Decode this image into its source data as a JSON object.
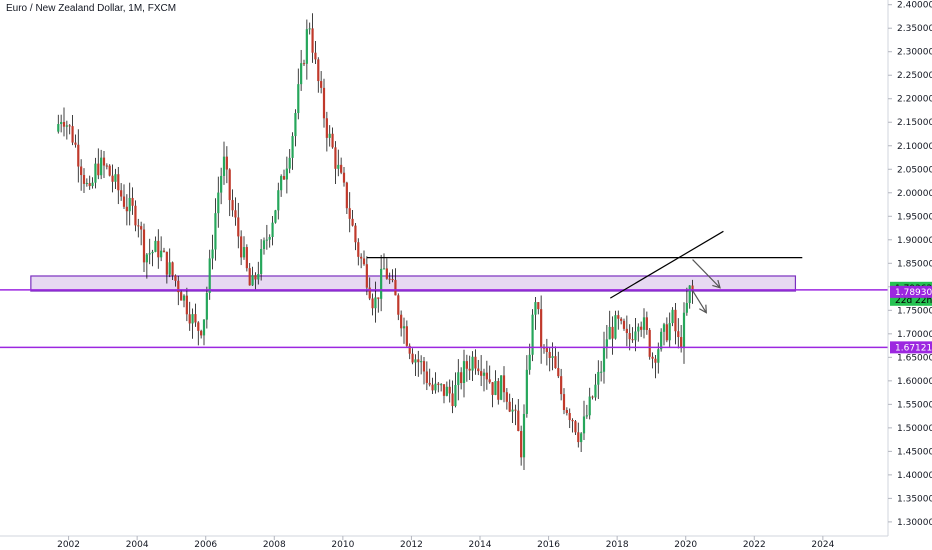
{
  "header": {
    "title": "Euro / New Zealand Dollar, 1M, FXCM"
  },
  "colors": {
    "up": "#26a65b",
    "down": "#c0392b",
    "zone_fill": "#e7d9f2",
    "zone_border": "#7b2fbf",
    "level_line": "#9c27e0",
    "price_badge": "#26c252",
    "axis_text": "#131722"
  },
  "chart_data": {
    "type": "candlestick",
    "title": "Euro / New Zealand Dollar, 1M, FXCM",
    "symbol": "EURNZD",
    "timeframe": "1M",
    "ylim": [
      1.27,
      2.41
    ],
    "xlim": [
      2000.0,
      2025.9
    ],
    "y_ticks": [
      "2.40000",
      "2.35000",
      "2.30000",
      "2.25000",
      "2.20000",
      "2.15000",
      "2.10000",
      "2.05000",
      "2.00000",
      "1.95000",
      "1.90000",
      "1.85000",
      "1.80000",
      "1.75000",
      "1.70000",
      "1.65000",
      "1.60000",
      "1.55000",
      "1.50000",
      "1.45000",
      "1.40000",
      "1.35000",
      "1.30000"
    ],
    "x_ticks": [
      "2002",
      "2004",
      "2006",
      "2008",
      "2010",
      "2012",
      "2014",
      "2016",
      "2018",
      "2020",
      "2022",
      "2024"
    ],
    "price_path": [
      [
        2001.7,
        2.13
      ],
      [
        2001.9,
        2.17
      ],
      [
        2002.2,
        2.12
      ],
      [
        2002.4,
        2.07
      ],
      [
        2002.7,
        1.99
      ],
      [
        2002.9,
        2.06
      ],
      [
        2003.2,
        2.05
      ],
      [
        2003.5,
        2.01
      ],
      [
        2003.8,
        1.97
      ],
      [
        2004.1,
        1.95
      ],
      [
        2004.3,
        1.87
      ],
      [
        2004.7,
        1.88
      ],
      [
        2005.0,
        1.84
      ],
      [
        2005.3,
        1.8
      ],
      [
        2005.6,
        1.75
      ],
      [
        2005.8,
        1.71
      ],
      [
        2006.0,
        1.72
      ],
      [
        2006.2,
        1.84
      ],
      [
        2006.4,
        1.98
      ],
      [
        2006.6,
        2.07
      ],
      [
        2006.8,
        1.98
      ],
      [
        2007.0,
        1.92
      ],
      [
        2007.2,
        1.86
      ],
      [
        2007.4,
        1.79
      ],
      [
        2007.7,
        1.86
      ],
      [
        2008.0,
        1.94
      ],
      [
        2008.3,
        2.02
      ],
      [
        2008.6,
        2.12
      ],
      [
        2008.9,
        2.27
      ],
      [
        2009.1,
        2.37
      ],
      [
        2009.3,
        2.26
      ],
      [
        2009.6,
        2.14
      ],
      [
        2009.9,
        2.06
      ],
      [
        2010.2,
        1.98
      ],
      [
        2010.5,
        1.88
      ],
      [
        2010.8,
        1.82
      ],
      [
        2011.0,
        1.76
      ],
      [
        2011.3,
        1.84
      ],
      [
        2011.5,
        1.8
      ],
      [
        2011.8,
        1.73
      ],
      [
        2012.1,
        1.66
      ],
      [
        2012.4,
        1.63
      ],
      [
        2012.7,
        1.58
      ],
      [
        2013.0,
        1.58
      ],
      [
        2013.3,
        1.57
      ],
      [
        2013.6,
        1.62
      ],
      [
        2013.9,
        1.65
      ],
      [
        2014.2,
        1.63
      ],
      [
        2014.5,
        1.58
      ],
      [
        2014.8,
        1.59
      ],
      [
        2015.1,
        1.52
      ],
      [
        2015.3,
        1.45
      ],
      [
        2015.5,
        1.65
      ],
      [
        2015.7,
        1.78
      ],
      [
        2015.9,
        1.66
      ],
      [
        2016.2,
        1.64
      ],
      [
        2016.5,
        1.56
      ],
      [
        2016.8,
        1.52
      ],
      [
        2017.0,
        1.48
      ],
      [
        2017.3,
        1.55
      ],
      [
        2017.6,
        1.62
      ],
      [
        2017.8,
        1.7
      ],
      [
        2018.1,
        1.72
      ],
      [
        2018.4,
        1.68
      ],
      [
        2018.7,
        1.74
      ],
      [
        2018.9,
        1.71
      ],
      [
        2019.1,
        1.65
      ],
      [
        2019.4,
        1.69
      ],
      [
        2019.7,
        1.73
      ],
      [
        2019.9,
        1.67
      ],
      [
        2020.1,
        1.75
      ],
      [
        2020.2,
        1.79
      ]
    ],
    "zones": [
      {
        "type": "rectangle",
        "x": [
          2000.9,
          2023.2
        ],
        "y": [
          1.791,
          1.823
        ]
      }
    ],
    "horizontal_lines": [
      {
        "y": 1.7936,
        "x_start": 2000.0
      },
      {
        "y": 1.6712,
        "x_start": 2000.0
      }
    ],
    "trendlines": [
      {
        "x": [
          2010.7,
          2023.4
        ],
        "y": [
          1.862,
          1.862
        ]
      },
      {
        "x": [
          2017.8,
          2021.1
        ],
        "y": [
          1.776,
          1.918
        ]
      }
    ],
    "arrows": [
      {
        "x": [
          2020.2,
          2021.0
        ],
        "y": [
          1.858,
          1.798
        ]
      },
      {
        "x": [
          2020.2,
          2020.6
        ],
        "y": [
          1.792,
          1.745
        ]
      }
    ],
    "price_labels": [
      {
        "value": "1.79362",
        "style": "current"
      },
      {
        "value": "22d 22h",
        "style": "countdown"
      },
      {
        "value": "1.78930",
        "style": "level"
      },
      {
        "value": "1.67121",
        "style": "level"
      }
    ]
  }
}
